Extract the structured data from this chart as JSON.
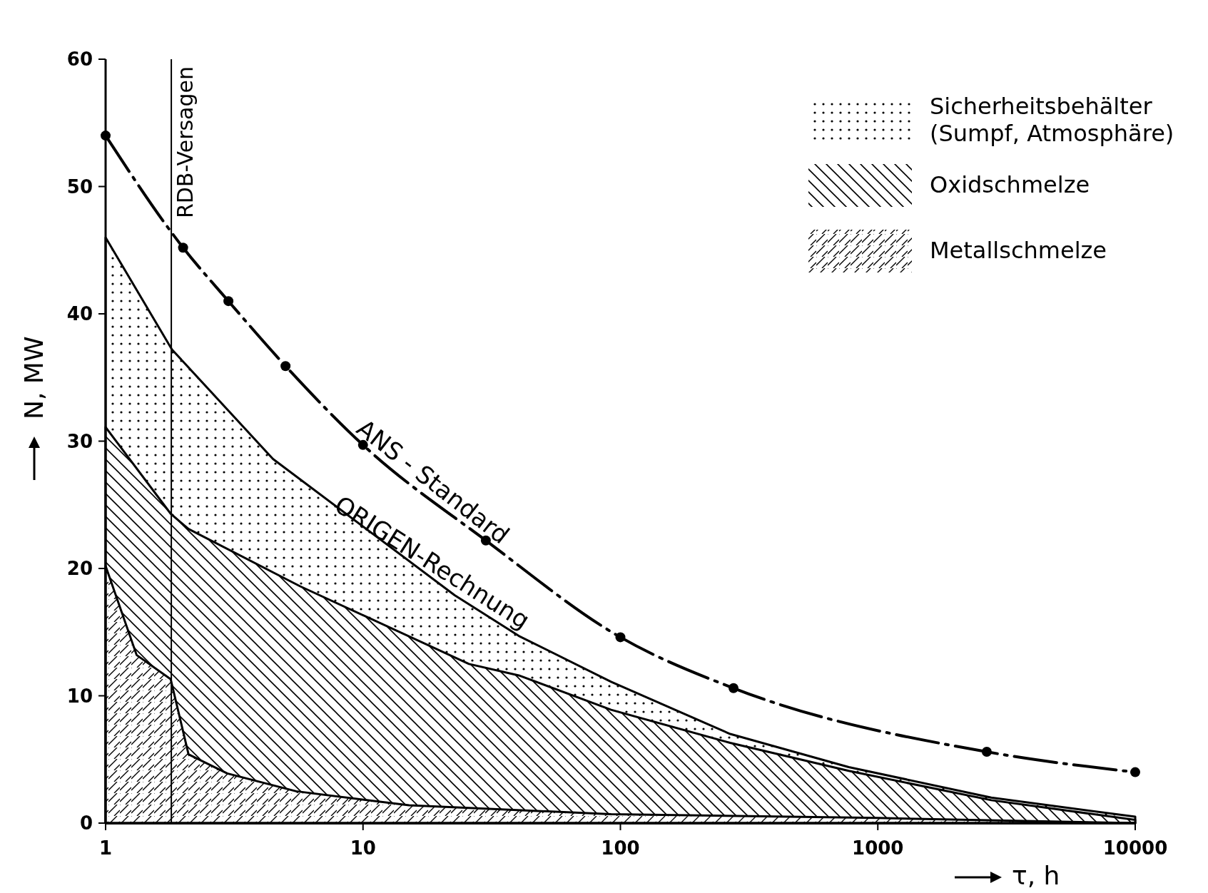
{
  "chart_data": {
    "type": "line",
    "xlabel": "τ, h",
    "ylabel": "N, MW",
    "log": "x",
    "xlim": [
      1,
      10000
    ],
    "xticks": [
      1,
      10,
      100,
      1000,
      10000
    ],
    "ylim": [
      0,
      60
    ],
    "yticks": [
      0,
      10,
      20,
      30,
      40,
      50,
      60
    ],
    "grid": false,
    "legend": "top right",
    "series": [
      {
        "name": "Sicherheitsbehälter (Sumpf, Atmosphäre)",
        "type": "area",
        "color": "#000000",
        "x": [
          1,
          1.81,
          4.47,
          22.7,
          40.3,
          92,
          267,
          771,
          2760,
          10000
        ],
        "values": [
          46,
          37.2,
          28.6,
          17.9,
          14.7,
          11.1,
          7.0,
          4.4,
          2.0,
          0.5
        ]
      },
      {
        "name": "Oxidschmelze",
        "type": "area",
        "color": "#000000",
        "x": [
          1,
          1.79,
          2.1,
          5.7,
          25.8,
          40.3,
          92,
          267,
          771,
          2760,
          10000
        ],
        "values": [
          31.1,
          24.3,
          23.1,
          18.6,
          12.5,
          11.6,
          8.9,
          6.3,
          4.1,
          1.8,
          0.25
        ]
      },
      {
        "name": "Metallschmelze",
        "type": "area",
        "color": "#000000",
        "x": [
          1,
          1.32,
          1.79,
          2.1,
          2.97,
          5.5,
          15.1,
          92,
          1000,
          10000
        ],
        "values": [
          20.2,
          13.2,
          11.3,
          5.4,
          3.9,
          2.5,
          1.4,
          0.7,
          0.4,
          0
        ]
      },
      {
        "name": "ANS - Standard",
        "color": "#000000",
        "line_style": "dashed",
        "marker": "circle",
        "x": [
          1,
          2,
          3,
          5,
          10,
          30,
          100,
          275,
          2650,
          10000
        ],
        "values": [
          54,
          45.2,
          41,
          35.9,
          29.7,
          22.2,
          14.6,
          10.6,
          5.6,
          4.0
        ]
      }
    ],
    "annotations": [
      {
        "text": "ORIGEN-Rechnung",
        "x": 40.3,
        "y": 14.7
      }
    ],
    "ref_lines": [
      {
        "axis": "x",
        "value": 1.8,
        "label": "RDB-Versagen",
        "color": "#000000"
      }
    ]
  }
}
